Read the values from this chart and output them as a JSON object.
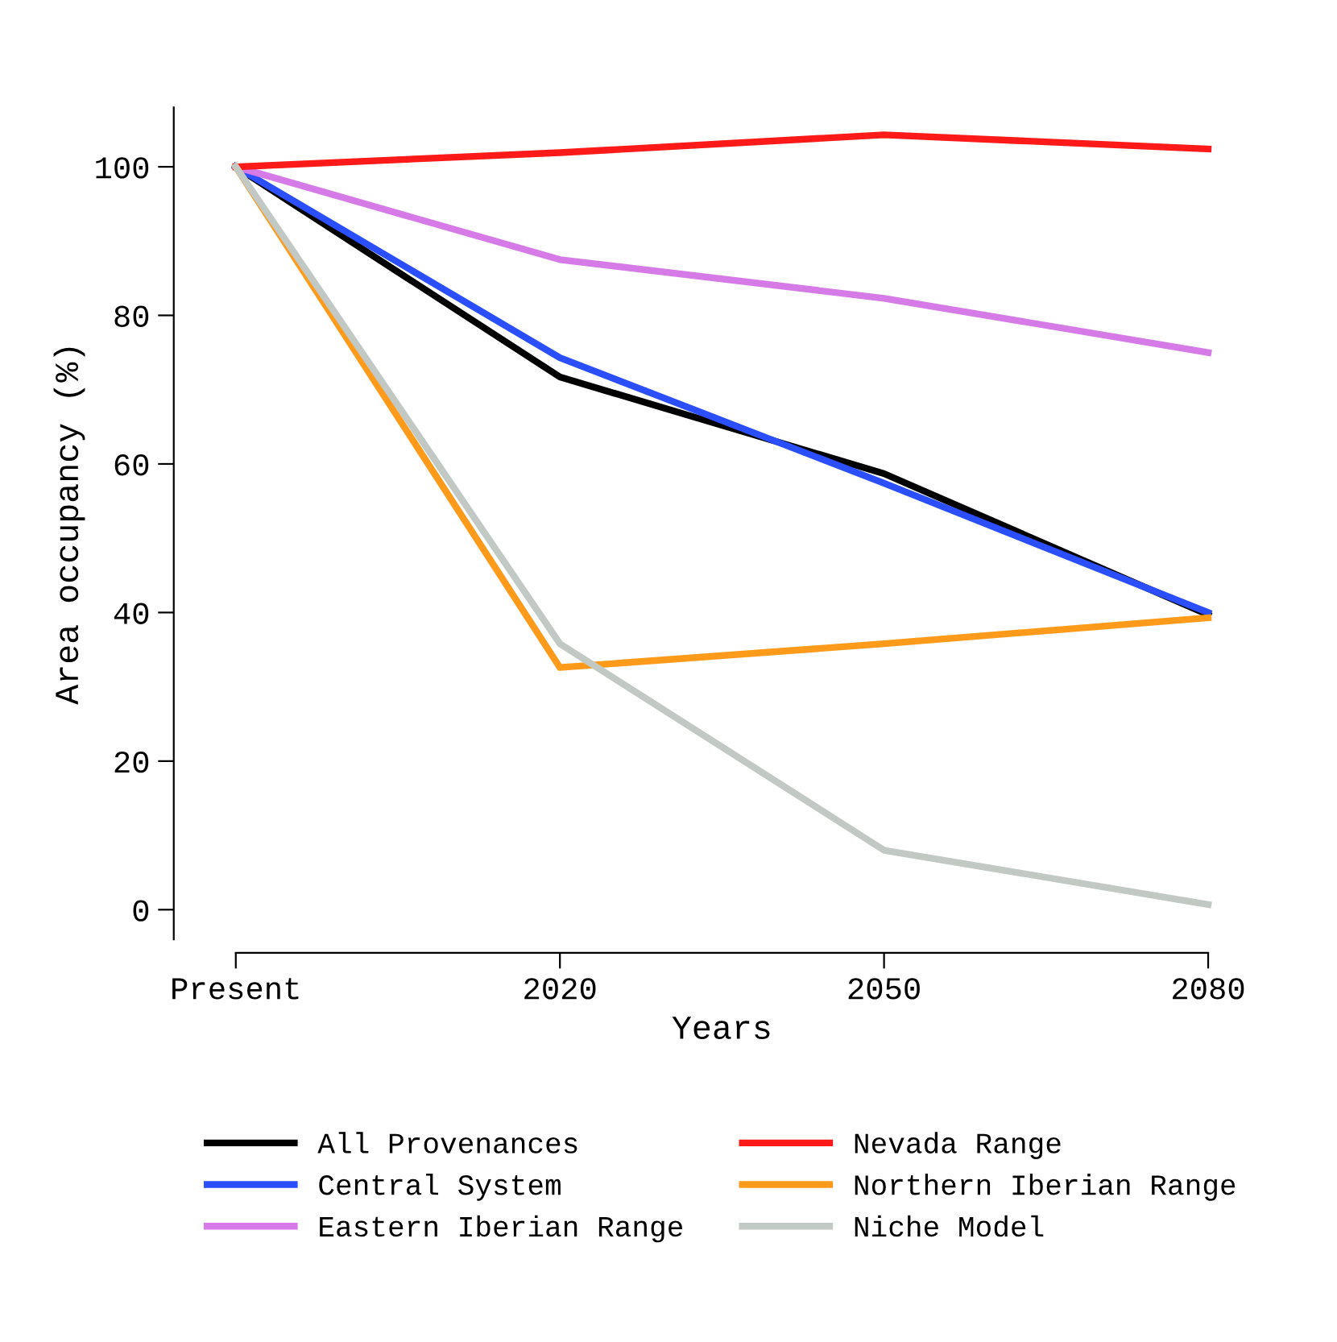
{
  "chart_data": {
    "type": "line",
    "xlabel": "Years",
    "ylabel": "Area occupancy (%)",
    "categories": [
      "Present",
      "2020",
      "2050",
      "2080"
    ],
    "ylim": [
      -4,
      108
    ],
    "yticks": [
      0,
      20,
      40,
      60,
      80,
      100
    ],
    "grid": false,
    "legend": "bottom",
    "marker": "none",
    "line_style": "solid",
    "series": [
      {
        "name": "All Provenances",
        "color": "#000000",
        "values": [
          100,
          71.7,
          58.7,
          39.7
        ]
      },
      {
        "name": "Central System",
        "color": "#2b4fff",
        "values": [
          100,
          74.3,
          57.4,
          40.0
        ]
      },
      {
        "name": "Eastern Iberian Range",
        "color": "#d67ae8",
        "values": [
          100,
          87.5,
          82.3,
          75.0
        ]
      },
      {
        "name": "Nevada Range",
        "color": "#ff1a1a",
        "values": [
          100,
          101.9,
          104.3,
          102.4
        ]
      },
      {
        "name": "Northern Iberian Range",
        "color": "#ff9a1a",
        "values": [
          100,
          32.6,
          35.8,
          39.3
        ]
      },
      {
        "name": "Niche Model",
        "color": "#c2c8c4",
        "values": [
          100,
          35.8,
          8.0,
          0.7
        ]
      }
    ]
  }
}
